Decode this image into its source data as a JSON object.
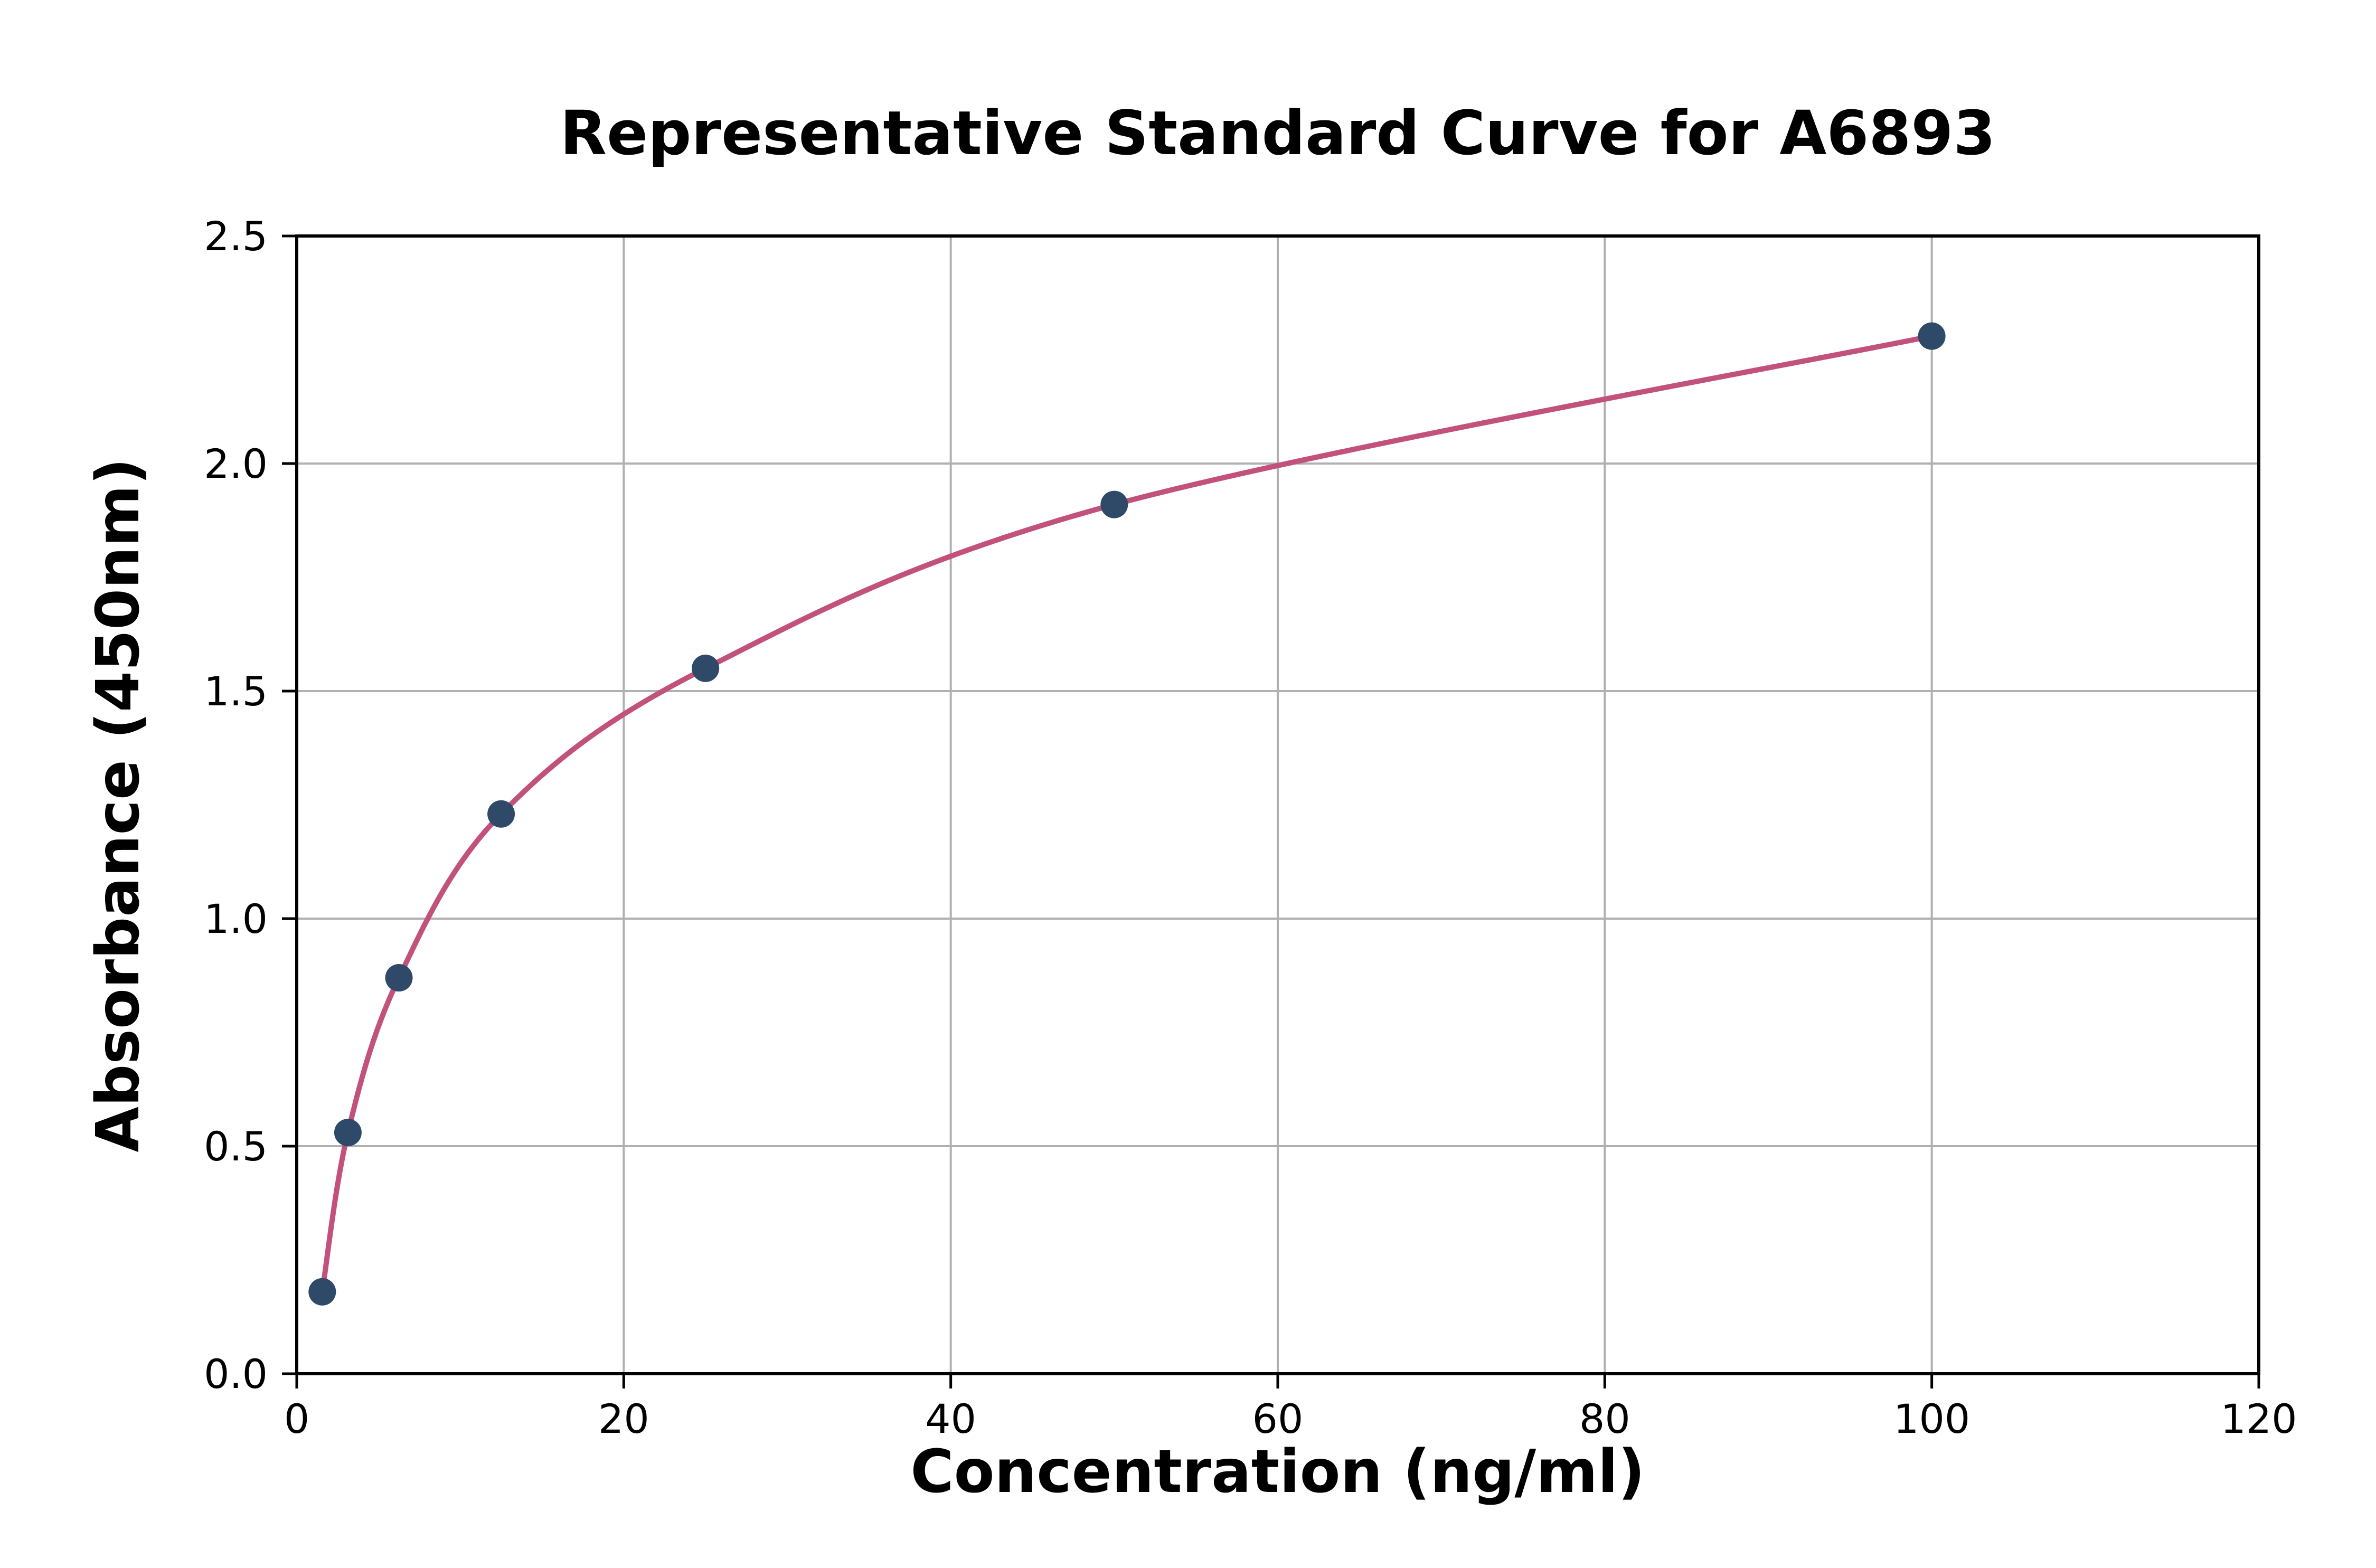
{
  "chart_data": {
    "type": "scatter",
    "title": "Representative Standard Curve for A6893",
    "xlabel": "Concentration (ng/ml)",
    "ylabel": "Absorbance (450nm)",
    "xlim": [
      0,
      120
    ],
    "ylim": [
      0,
      2.5
    ],
    "xtick_values": [
      0,
      20,
      40,
      60,
      80,
      100,
      120
    ],
    "xtick_labels": [
      "0",
      "20",
      "40",
      "60",
      "80",
      "100",
      "120"
    ],
    "ytick_values": [
      0,
      0.5,
      1.0,
      1.5,
      2.0,
      2.5
    ],
    "ytick_labels": [
      "0.0",
      "0.5",
      "1.0",
      "1.5",
      "2.0",
      "2.5"
    ],
    "grid": true,
    "legend": "none",
    "series": [
      {
        "name": "standards",
        "x": [
          1.56,
          3.13,
          6.25,
          12.5,
          25,
          50,
          100
        ],
        "y": [
          0.18,
          0.53,
          0.87,
          1.23,
          1.55,
          1.91,
          2.28
        ]
      }
    ],
    "curve_style": "smooth 4PL-type fit through standard points, drawn from first to last point",
    "colors": {
      "marker": "#2e4a68",
      "curve": "#c2527b",
      "grid": "#b0b0b0",
      "spine": "#000000",
      "background": "#ffffff",
      "text": "#000000"
    }
  }
}
